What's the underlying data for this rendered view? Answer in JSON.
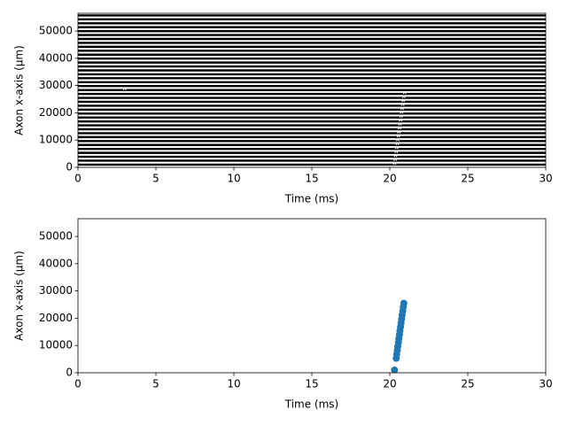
{
  "chart_data": [
    {
      "type": "raster",
      "xlabel": "Time (ms)",
      "ylabel": "Axon x-axis (µm)",
      "xlim": [
        0,
        30
      ],
      "xticks": [
        0,
        5,
        10,
        15,
        20,
        25,
        30
      ],
      "ylim": [
        0,
        56500
      ],
      "yticks": [
        0,
        10000,
        20000,
        30000,
        40000,
        50000
      ],
      "color": "#000000",
      "trace_offsets": [
        1000,
        2440,
        3880,
        5320,
        6760,
        8200,
        9640,
        11080,
        12520,
        13960,
        15400,
        16840,
        18280,
        19720,
        21160,
        22600,
        24040,
        25480,
        26920,
        28360,
        29800,
        31240,
        32680,
        34120,
        35560,
        37000,
        38440,
        39880,
        41320,
        42760,
        44200,
        45640,
        47080,
        48520,
        49960,
        51400,
        52840,
        54280,
        55720
      ],
      "spike_times": [
        20.3,
        20.34,
        20.37,
        20.41,
        20.44,
        20.48,
        20.51,
        20.55,
        20.58,
        20.62,
        20.65,
        20.69,
        20.72,
        20.76,
        20.79,
        20.83,
        20.86,
        20.9,
        20.95,
        3,
        null,
        null,
        null,
        null,
        null,
        null,
        null,
        null,
        null,
        null,
        null,
        null,
        null,
        null,
        null,
        null,
        null,
        null,
        null
      ]
    },
    {
      "type": "scatter",
      "xlabel": "Time (ms)",
      "ylabel": "Axon x-axis (µm)",
      "xlim": [
        0,
        30
      ],
      "xticks": [
        0,
        5,
        10,
        15,
        20,
        25,
        30
      ],
      "ylim": [
        0,
        56500
      ],
      "yticks": [
        0,
        10000,
        20000,
        30000,
        40000,
        50000
      ],
      "color": "#1f77b4",
      "x": [
        20.3,
        20.41,
        20.44,
        20.48,
        20.51,
        20.55,
        20.58,
        20.62,
        20.65,
        20.69,
        20.72,
        20.76,
        20.79,
        20.83,
        20.86,
        20.9
      ],
      "y": [
        1000,
        5320,
        6760,
        8200,
        9640,
        11080,
        12520,
        13960,
        15400,
        16840,
        18280,
        19720,
        21160,
        22600,
        24040,
        25480
      ]
    }
  ]
}
